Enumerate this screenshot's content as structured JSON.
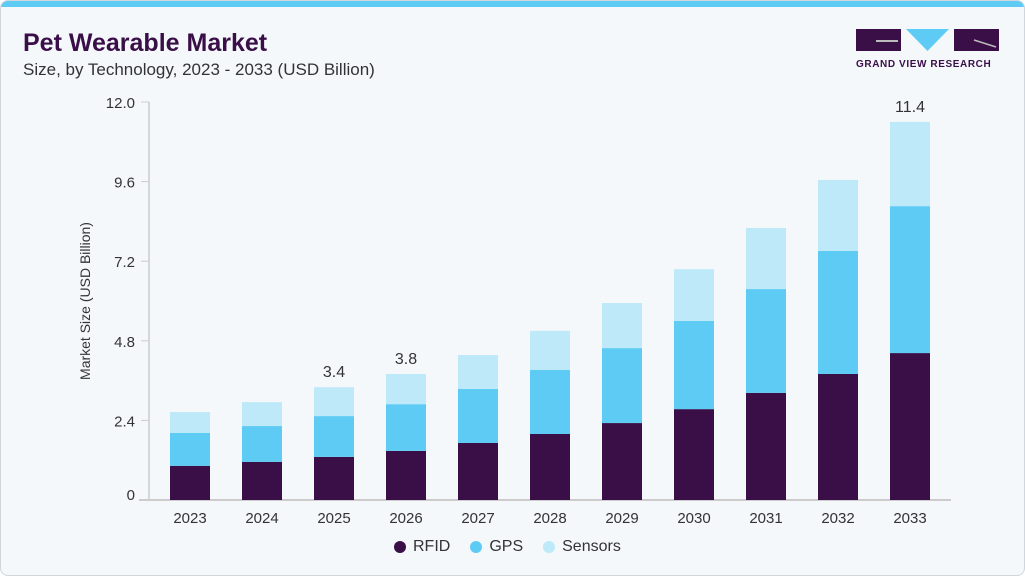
{
  "header": {
    "title": "Pet Wearable Market",
    "subtitle": "Size, by Technology, 2023 - 2033 (USD Billion)",
    "logo_text": "GRAND VIEW RESEARCH"
  },
  "colors": {
    "RFID": "#3a0f48",
    "GPS": "#5ecbf5",
    "Sensors": "#bde9f9",
    "accent": "#5ecbf5"
  },
  "chart_data": {
    "type": "bar",
    "stacked": true,
    "title": "Pet Wearable Market",
    "subtitle": "Size, by Technology, 2023 - 2033 (USD Billion)",
    "xlabel": "",
    "ylabel": "Market Size (USD Billion)",
    "ylim": [
      0,
      12
    ],
    "yticks": [
      "0",
      "2.4",
      "4.8",
      "7.2",
      "9.6",
      "12.0"
    ],
    "categories": [
      "2023",
      "2024",
      "2025",
      "2026",
      "2027",
      "2028",
      "2029",
      "2030",
      "2031",
      "2032",
      "2033"
    ],
    "series": [
      {
        "name": "RFID",
        "values": [
          1.03,
          1.15,
          1.3,
          1.48,
          1.72,
          1.99,
          2.32,
          2.74,
          3.23,
          3.8,
          4.43
        ]
      },
      {
        "name": "GPS",
        "values": [
          0.99,
          1.08,
          1.23,
          1.41,
          1.63,
          1.93,
          2.26,
          2.66,
          3.13,
          3.71,
          4.43
        ]
      },
      {
        "name": "Sensors",
        "values": [
          0.63,
          0.72,
          0.87,
          0.91,
          1.02,
          1.18,
          1.36,
          1.56,
          1.84,
          2.14,
          2.54
        ]
      }
    ],
    "annotations": [
      {
        "category": "2025",
        "text": "3.4"
      },
      {
        "category": "2026",
        "text": "3.8"
      },
      {
        "category": "2033",
        "text": "11.4"
      }
    ],
    "grid": false,
    "legend": "bottom"
  }
}
